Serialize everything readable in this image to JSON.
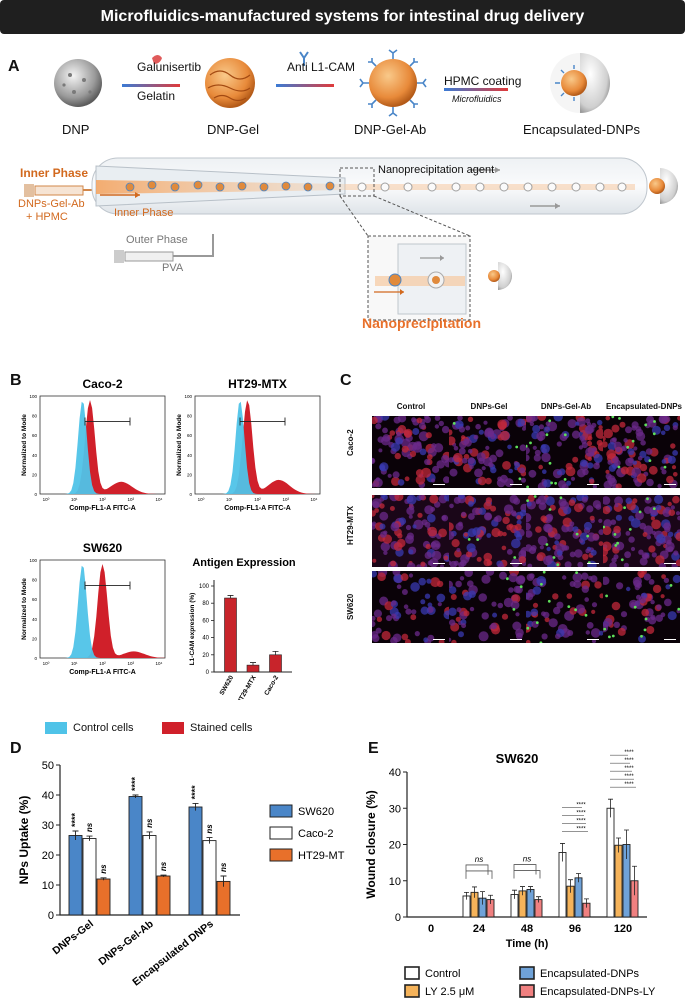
{
  "banner": {
    "title": "Microfluidics-manufactured systems for intestinal drug delivery"
  },
  "panelA": {
    "label": "A",
    "dnp": "DNP",
    "galunisertib": "Galunisertib",
    "gelatin": "Gelatin",
    "dnp_gel": "DNP-Gel",
    "anti_l1cam": "Anti L1-CAM",
    "dnp_gel_ab": "DNP-Gel-Ab",
    "hpmc_coating": "HPMC coating",
    "microfluidics": "Microfluidics",
    "encapsulated": "Encapsulated-DNPs",
    "inner_phase_top": "Inner Phase",
    "dnps_gel_ab_hpmc_1": "DNPs-Gel-Ab",
    "dnps_gel_ab_hpmc_2": "+ HPMC",
    "inner_phase_mid": "Inner Phase",
    "nanoprecipitation_agent": "Nanoprecipitation agent",
    "outer_phase": "Outer Phase",
    "pva": "PVA",
    "nanoprecipitation": "Nanoprecipitation"
  },
  "panelB": {
    "label": "B",
    "hist_titles": [
      "Caco-2",
      "HT29-MTX",
      "SW620"
    ],
    "ylabel": "Normalized to Mode",
    "xlabel": "Comp-FL1-A FITC-A",
    "yticks": [
      "0",
      "20",
      "40",
      "60",
      "80",
      "100"
    ],
    "xticks": [
      "10⁰",
      "10¹",
      "10²",
      "10³",
      "10⁴"
    ],
    "legend_control": "Control cells",
    "legend_stained": "Stained cells",
    "colors": {
      "control": "#4fc3e8",
      "stained": "#d0202a"
    }
  },
  "antigen_chart": {
    "chart_data": {
      "type": "bar",
      "title": "Antigen Expression",
      "ylabel": "L1-CAM expression (%)",
      "categories": [
        "SW620",
        "HT29-MTX",
        "Caco-2"
      ],
      "values": [
        86,
        8,
        20
      ],
      "errors": [
        3,
        3,
        4
      ],
      "ylim": [
        0,
        100
      ],
      "yticks": [
        0,
        20,
        40,
        60,
        80,
        100
      ],
      "color": "#c8242b"
    }
  },
  "panelC": {
    "label": "C",
    "columns": [
      "Control",
      "DNPs-Gel",
      "DNPs-Gel-Ab",
      "Encapsulated-DNPs"
    ],
    "rows": [
      "Caco-2",
      "HT29-MTX",
      "SW620"
    ]
  },
  "panelD": {
    "label": "D",
    "chart_data": {
      "type": "bar",
      "ylabel": "NPs Uptake (%)",
      "categories": [
        "DNPs-Gel",
        "DNPs-Gel-Ab",
        "Encapsulated DNPs"
      ],
      "series": [
        {
          "name": "SW620",
          "values": [
            26.5,
            39.5,
            36
          ],
          "errors": [
            1.5,
            0.5,
            1.2
          ],
          "color": "#4a86c8"
        },
        {
          "name": "Caco-2",
          "values": [
            25.5,
            26.5,
            24.8
          ],
          "errors": [
            0.8,
            1.2,
            1.0
          ],
          "color": "#ffffff"
        },
        {
          "name": "HT29-MTX",
          "values": [
            12,
            13,
            11.2
          ],
          "errors": [
            0.4,
            0.3,
            1.8
          ],
          "color": "#e8702a"
        }
      ],
      "annotations": [
        [
          "****",
          "ns",
          "ns"
        ],
        [
          "****",
          "ns",
          "ns"
        ],
        [
          "****",
          "ns",
          "ns"
        ]
      ],
      "ylim": [
        0,
        50
      ],
      "yticks": [
        0,
        10,
        20,
        30,
        40,
        50
      ]
    }
  },
  "panelE": {
    "label": "E",
    "chart_data": {
      "type": "bar",
      "title": "SW620",
      "xlabel": "Time (h)",
      "ylabel": "Wound closure (%)",
      "categories": [
        "0",
        "24",
        "48",
        "96",
        "120"
      ],
      "series": [
        {
          "name": "Control",
          "values": [
            0,
            5.8,
            6.2,
            17.8,
            30
          ],
          "errors": [
            0,
            1.0,
            1.2,
            2.5,
            2.5
          ],
          "color": "#ffffff"
        },
        {
          "name": "LY 2.5 μM",
          "values": [
            0,
            6.8,
            7.2,
            8.5,
            19.8
          ],
          "errors": [
            0,
            1.5,
            1.2,
            1.8,
            2.0
          ],
          "color": "#f5b35a"
        },
        {
          "name": "Encapsulated-DNPs",
          "values": [
            0,
            5.2,
            7.6,
            10.8,
            20
          ],
          "errors": [
            0,
            1.8,
            0.8,
            1.2,
            4.0
          ],
          "color": "#6fa2d8"
        },
        {
          "name": "Encapsulated-DNPs-LY",
          "values": [
            0,
            4.8,
            4.8,
            3.8,
            10
          ],
          "errors": [
            0,
            1.2,
            0.8,
            1.2,
            4.0
          ],
          "color": "#f08080"
        }
      ],
      "annotations": [
        "ns",
        "ns",
        "****",
        "****"
      ],
      "ylim": [
        0,
        40
      ],
      "yticks": [
        0,
        10,
        20,
        30,
        40
      ]
    }
  }
}
